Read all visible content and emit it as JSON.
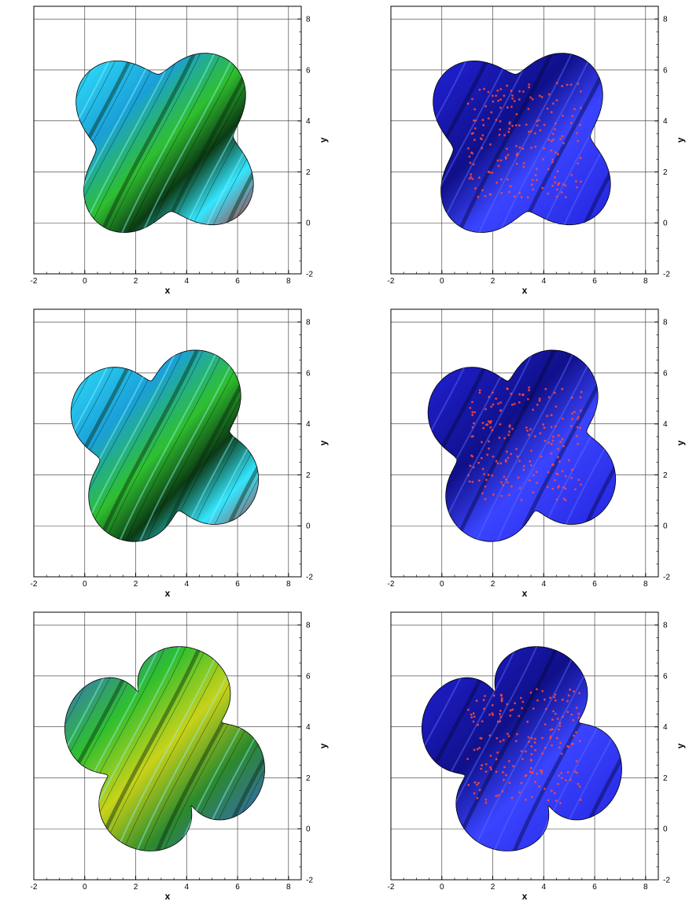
{
  "chart_data": [
    {
      "type": "heatmap",
      "xlabel": "x",
      "ylabel": "y",
      "xlim": [
        -2,
        8.5
      ],
      "ylim": [
        -2,
        8.5
      ],
      "xticks": [
        -2,
        0,
        2,
        4,
        6,
        8
      ],
      "yticks": [
        -2,
        0,
        2,
        4,
        6,
        8
      ],
      "grid": true,
      "row": 1,
      "column": 1,
      "rotation_deg": 5,
      "arm_curl": 0.5,
      "colormap": "cyan-green-red",
      "contours": true
    },
    {
      "type": "heatmap",
      "xlabel": "x",
      "ylabel": "y",
      "xlim": [
        -2,
        8.5
      ],
      "ylim": [
        -2,
        8.5
      ],
      "xticks": [
        -2,
        0,
        2,
        4,
        6,
        8
      ],
      "yticks": [
        -2,
        0,
        2,
        4,
        6,
        8
      ],
      "grid": true,
      "row": 1,
      "column": 2,
      "rotation_deg": 5,
      "arm_curl": 0.5,
      "colormap": "blue-red",
      "contours": false
    },
    {
      "type": "heatmap",
      "xlabel": "x",
      "ylabel": "y",
      "xlim": [
        -2,
        8.5
      ],
      "ylim": [
        -2,
        8.5
      ],
      "xticks": [
        -2,
        0,
        2,
        4,
        6,
        8
      ],
      "yticks": [
        -2,
        0,
        2,
        4,
        6,
        8
      ],
      "grid": true,
      "row": 2,
      "column": 1,
      "rotation_deg": 12,
      "arm_curl": 1.2,
      "colormap": "cyan-green-red",
      "contours": true
    },
    {
      "type": "heatmap",
      "xlabel": "x",
      "ylabel": "y",
      "xlim": [
        -2,
        8.5
      ],
      "ylim": [
        -2,
        8.5
      ],
      "xticks": [
        -2,
        0,
        2,
        4,
        6,
        8
      ],
      "yticks": [
        -2,
        0,
        2,
        4,
        6,
        8
      ],
      "grid": true,
      "row": 2,
      "column": 2,
      "rotation_deg": 12,
      "arm_curl": 1.2,
      "colormap": "blue-red",
      "contours": false
    },
    {
      "type": "heatmap",
      "xlabel": "x",
      "ylabel": "y",
      "xlim": [
        -2,
        8.5
      ],
      "ylim": [
        -2,
        8.5
      ],
      "xticks": [
        -2,
        0,
        2,
        4,
        6,
        8
      ],
      "yticks": [
        -2,
        0,
        2,
        4,
        6,
        8
      ],
      "grid": true,
      "row": 3,
      "column": 1,
      "rotation_deg": 25,
      "arm_curl": 2.2,
      "colormap": "blue-green-yellow",
      "contours": true
    },
    {
      "type": "heatmap",
      "xlabel": "x",
      "ylabel": "y",
      "xlim": [
        -2,
        8.5
      ],
      "ylim": [
        -2,
        8.5
      ],
      "xticks": [
        -2,
        0,
        2,
        4,
        6,
        8
      ],
      "yticks": [
        -2,
        0,
        2,
        4,
        6,
        8
      ],
      "grid": true,
      "row": 3,
      "column": 2,
      "rotation_deg": 25,
      "arm_curl": 2.2,
      "colormap": "blue-red",
      "contours": false
    }
  ],
  "colors": {
    "axis": "#000000",
    "grid": "#333333",
    "cyan": "#33e6ff",
    "green": "#2fbf2f",
    "red": "#cc1111",
    "blue": "#2222dd",
    "darkblue": "#10108a"
  }
}
